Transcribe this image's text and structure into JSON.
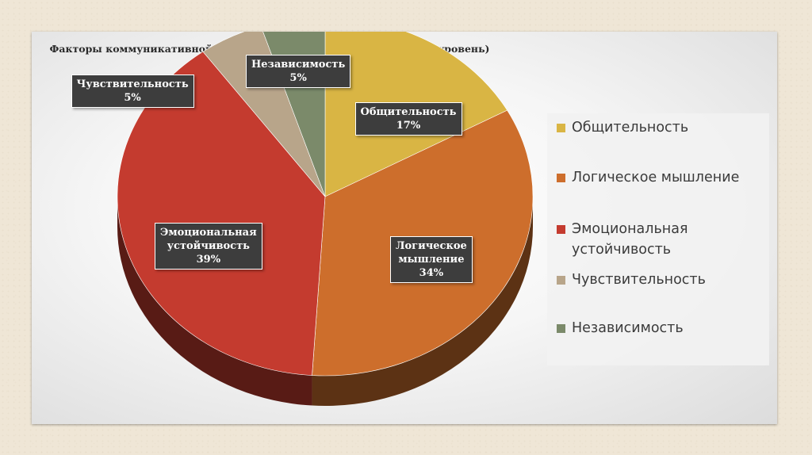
{
  "chart_data": {
    "type": "pie",
    "title": "Факторы коммуникативной социальной компетентности (низкий уровень)",
    "categories": [
      "Общительность",
      "Логическое мышление",
      "Эмоциональная устойчивость",
      "Чувствительность",
      "Независимость"
    ],
    "values": [
      17,
      34,
      39,
      5,
      5
    ],
    "value_labels": [
      "17%",
      "34%",
      "39%",
      "5%",
      "5%"
    ],
    "label_lines": [
      [
        "Общительность"
      ],
      [
        "Логическое",
        "мышление"
      ],
      [
        "Эмоциональная",
        "устойчивость"
      ],
      [
        "Чувствительность"
      ],
      [
        "Независимость"
      ]
    ],
    "legend_lines": [
      [
        "Общительность"
      ],
      [
        "Логическое мышление"
      ],
      [
        "Эмоциональная",
        "устойчивость"
      ],
      [
        "Чувствительность"
      ],
      [
        "Независимость"
      ]
    ],
    "colors": [
      "#d9b544",
      "#cd6e2c",
      "#c43b2f",
      "#b8a58a",
      "#7b8a6a"
    ],
    "legend_placement": "right",
    "style": "3d"
  }
}
